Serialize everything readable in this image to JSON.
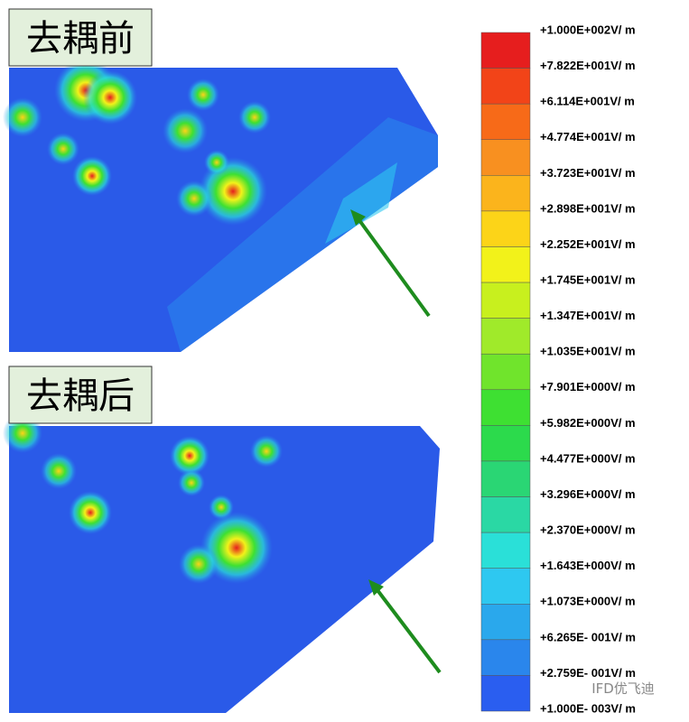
{
  "panels": [
    {
      "label": "去耦前"
    },
    {
      "label": "去耦后"
    }
  ],
  "colorbar": {
    "labels": [
      "+1.000E+002V/ m",
      "+7.822E+001V/ m",
      "+6.114E+001V/ m",
      "+4.774E+001V/ m",
      "+3.723E+001V/ m",
      "+2.898E+001V/ m",
      "+2.252E+001V/ m",
      "+1.745E+001V/ m",
      "+1.347E+001V/ m",
      "+1.035E+001V/ m",
      "+7.901E+000V/ m",
      "+5.982E+000V/ m",
      "+4.477E+000V/ m",
      "+3.296E+000V/ m",
      "+2.370E+000V/ m",
      "+1.643E+000V/ m",
      "+1.073E+000V/ m",
      "+6.265E- 001V/ m",
      "+2.759E- 001V/ m",
      "+1.000E- 003V/ m"
    ],
    "colors": [
      "#e61e1e",
      "#f24418",
      "#f76a18",
      "#f89020",
      "#fbb41c",
      "#fcd418",
      "#f2f21a",
      "#c8f01e",
      "#a0ea2a",
      "#70e42c",
      "#3ee032",
      "#2cda4c",
      "#2ad674",
      "#2ad8a4",
      "#2ae0d8",
      "#2ec8f0",
      "#2aa8ec",
      "#2a86ec",
      "#2a5ef0"
    ]
  },
  "watermark": "IFD优飞迪"
}
